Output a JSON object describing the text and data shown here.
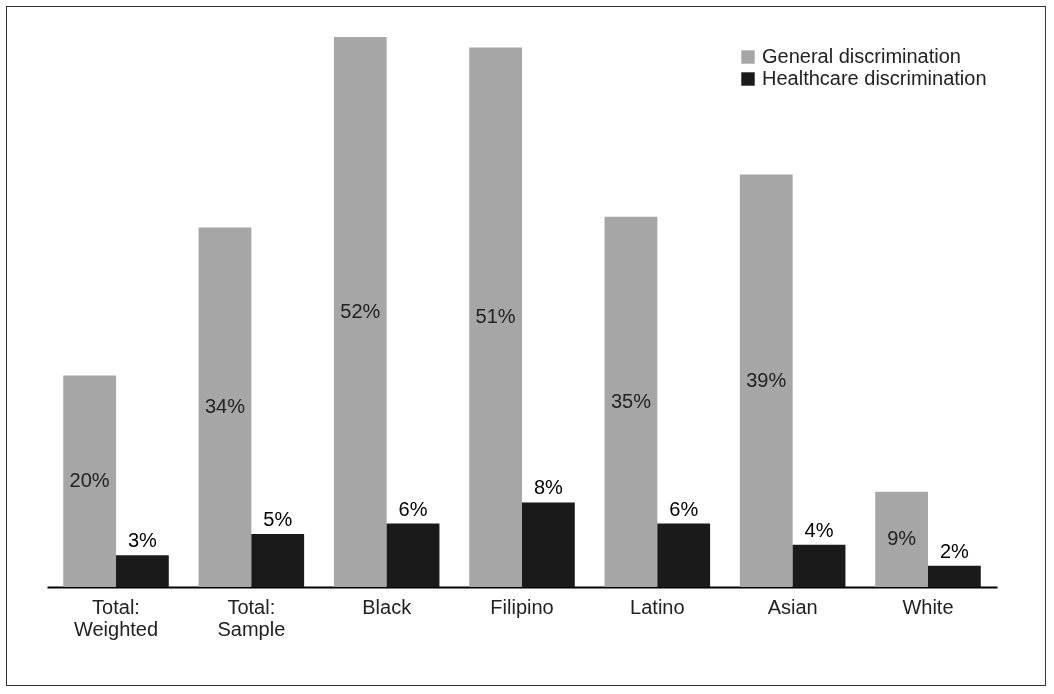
{
  "chart_data": {
    "type": "bar",
    "categories": [
      "Total: Weighted",
      "Total: Sample",
      "Black",
      "Filipino",
      "Latino",
      "Asian",
      "White"
    ],
    "series": [
      {
        "name": "General discrimination",
        "color": "#a6a6a6",
        "values": [
          20,
          34,
          52,
          51,
          35,
          39,
          9
        ],
        "value_labels": [
          "20%",
          "34%",
          "52%",
          "51%",
          "35%",
          "39%",
          "9%"
        ]
      },
      {
        "name": "Healthcare discrimination",
        "color": "#1a1a1a",
        "values": [
          3,
          5,
          6,
          8,
          6,
          4,
          2
        ],
        "value_labels": [
          "3%",
          "5%",
          "6%",
          "8%",
          "6%",
          "4%",
          "2%"
        ]
      }
    ],
    "legend": "top right"
  }
}
